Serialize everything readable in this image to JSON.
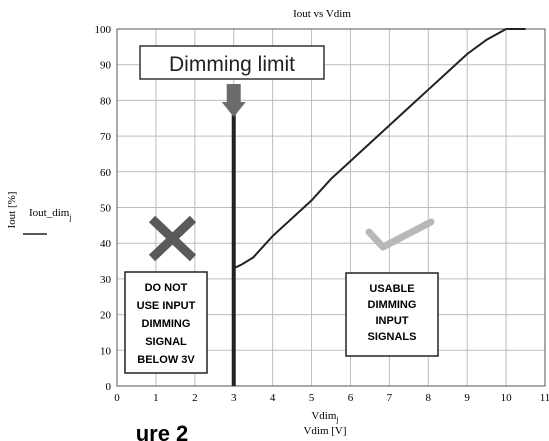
{
  "chart_data": {
    "type": "line",
    "title": "Iout vs Vdim",
    "xlabel_top": "Vdim",
    "xlabel_top_sub": "j",
    "xlabel_bottom": "Vdim [V]",
    "ylabel": "Iout [%]",
    "legend_label": "Iout_dim",
    "legend_sub": "j",
    "xlim": [
      0,
      11
    ],
    "ylim": [
      0,
      100
    ],
    "x_ticks": [
      "0",
      "1",
      "2",
      "3",
      "4",
      "5",
      "6",
      "7",
      "8",
      "9",
      "10",
      "11"
    ],
    "y_ticks": [
      "0",
      "10",
      "20",
      "30",
      "40",
      "50",
      "60",
      "70",
      "80",
      "90",
      "100"
    ],
    "grid": true,
    "series": [
      {
        "x": [
          3.0,
          3.0,
          3.2,
          3.5,
          4.0,
          4.5,
          5.0,
          5.5,
          6.0,
          6.5,
          7.0,
          7.5,
          8.0,
          8.5,
          9.0,
          9.5,
          10.0,
          10.3,
          10.5
        ],
        "y": [
          0,
          33,
          34,
          36,
          42,
          47,
          52,
          58,
          63,
          68,
          73,
          78,
          83,
          88,
          93,
          97,
          100,
          100,
          100
        ]
      }
    ],
    "annotations": {
      "limit_label": "Dimming limit",
      "limit_x": 3,
      "left_box_lines": [
        "DO NOT",
        "USE INPUT",
        "DIMMING",
        "SIGNAL",
        "BELOW 3V"
      ],
      "right_box_lines": [
        "USABLE",
        "DIMMING",
        "INPUT",
        "SIGNALS"
      ],
      "bottom_fragment": "ure 2"
    },
    "colors": {
      "line": "#222222",
      "cross": "#5a5a5a",
      "check": "#b8b8b8",
      "arrow": "#6b6b6b",
      "grid": "#bdbdbd"
    }
  }
}
